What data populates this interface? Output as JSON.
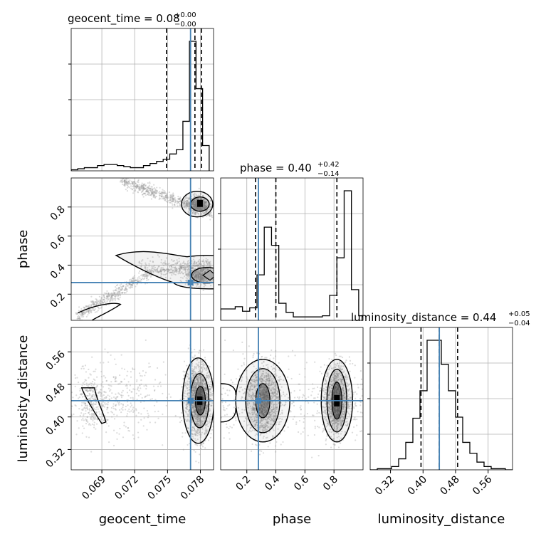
{
  "chart_data": {
    "type": "corner",
    "parameters": [
      "geocent_time",
      "phase",
      "luminosity_distance"
    ],
    "truth": {
      "geocent_time": 0.0771,
      "phase": 0.28,
      "luminosity_distance": 0.44
    },
    "ranges": {
      "geocent_time": [
        0.0662,
        0.0792
      ],
      "phase": [
        0.02,
        1.0
      ],
      "luminosity_distance": [
        0.27,
        0.62
      ]
    },
    "ticks": {
      "geocent_time": {
        "values": [
          0.069,
          0.072,
          0.075,
          0.078
        ],
        "labels": [
          "0.069",
          "0.072",
          "0.075",
          "0.078"
        ]
      },
      "phase": {
        "values": [
          0.2,
          0.4,
          0.6,
          0.8
        ],
        "labels": [
          "0.2",
          "0.4",
          "0.6",
          "0.8"
        ]
      },
      "luminosity_distance": {
        "values": [
          0.32,
          0.4,
          0.48,
          0.56
        ],
        "labels": [
          "0.32",
          "0.40",
          "0.48",
          "0.56"
        ]
      }
    },
    "titles": {
      "geocent_time": {
        "main": "geocent_time = 0.08",
        "sup": "+0.00",
        "sub": "−0.00"
      },
      "phase": {
        "main": "phase = 0.40",
        "sup": "+0.42",
        "sub": "−0.14"
      },
      "luminosity_distance": {
        "main": "luminosity_distance = 0.44",
        "sup": "+0.05",
        "sub": "−0.04"
      }
    },
    "quantiles": {
      "geocent_time": [
        0.0749,
        0.0775,
        0.0781
      ],
      "phase": [
        0.26,
        0.4,
        0.82
      ],
      "luminosity_distance": [
        0.395,
        0.44,
        0.485
      ]
    },
    "histograms": {
      "geocent_time": {
        "bins": [
          0.0662,
          0.0668,
          0.0674,
          0.068,
          0.0686,
          0.0692,
          0.0698,
          0.0704,
          0.071,
          0.0716,
          0.0722,
          0.0728,
          0.0734,
          0.074,
          0.0746,
          0.0752,
          0.0758,
          0.0764,
          0.077,
          0.0776,
          0.0782,
          0.0788
        ],
        "counts": [
          1,
          2,
          3,
          3,
          5,
          6,
          6,
          5,
          4,
          3,
          3,
          5,
          7,
          9,
          11,
          16,
          20,
          47,
          123,
          78,
          24
        ]
      },
      "phase": {
        "bins": [
          0.02,
          0.07,
          0.12,
          0.17,
          0.22,
          0.27,
          0.32,
          0.37,
          0.42,
          0.47,
          0.52,
          0.57,
          0.62,
          0.67,
          0.72,
          0.77,
          0.82,
          0.87,
          0.92,
          0.97,
          1.02
        ],
        "counts": [
          10,
          10,
          12,
          8,
          11,
          40,
          82,
          66,
          15,
          7,
          3,
          3,
          3,
          3,
          4,
          22,
          55,
          114,
          27,
          4
        ]
      },
      "luminosity_distance": {
        "bins": [
          0.27,
          0.2875,
          0.305,
          0.3225,
          0.34,
          0.3575,
          0.375,
          0.3925,
          0.41,
          0.4275,
          0.445,
          0.4625,
          0.48,
          0.4975,
          0.515,
          0.5325,
          0.55,
          0.5675,
          0.585,
          0.6025,
          0.62
        ],
        "counts": [
          0,
          1,
          1,
          3,
          10,
          25,
          47,
          72,
          118,
          118,
          96,
          72,
          48,
          25,
          15,
          7,
          3,
          1,
          1,
          0
        ]
      }
    },
    "density_centers": {
      "geocent_time_vs_phase": [
        [
          0.0775,
          0.82
        ],
        [
          0.0781,
          0.33
        ],
        [
          0.0771,
          0.28
        ]
      ],
      "geocent_time_vs_luminosity_distance": [
        [
          0.0779,
          0.44
        ],
        [
          0.0682,
          0.44
        ]
      ],
      "phase_vs_luminosity_distance": [
        [
          0.3,
          0.44
        ],
        [
          0.82,
          0.44
        ]
      ]
    },
    "colors": {
      "truth": "#4682b4",
      "line": "#000000",
      "points": "#9a9a9a",
      "grid": "#b0b0b0"
    }
  }
}
